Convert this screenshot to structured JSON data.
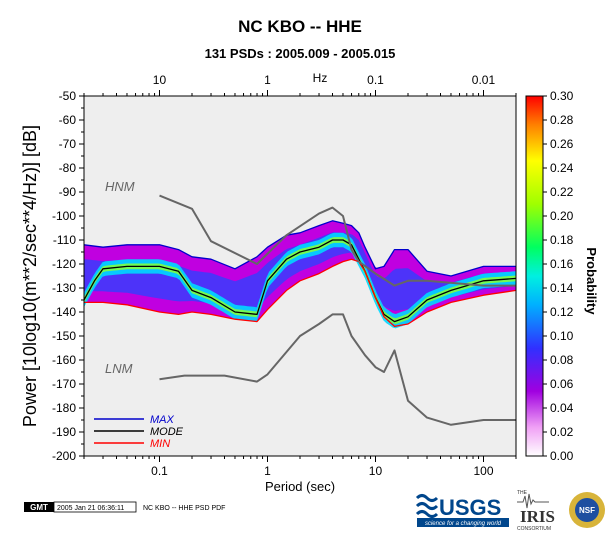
{
  "chart_data": {
    "type": "heatmap",
    "title": "NC KBO -- HHE",
    "subtitle": "131 PSDs : 2005.009 - 2005.015",
    "xlabel": "Period (sec)",
    "ylabel": "Power [10log10(m**2/sec**4/Hz)] [dB]",
    "x_scale": "log",
    "xlim": [
      0.02,
      200
    ],
    "ylim": [
      -200,
      -50
    ],
    "x_ticks": [
      "0.1",
      "1",
      "10",
      "100"
    ],
    "y_ticks": [
      "-50",
      "-60",
      "-70",
      "-80",
      "-90",
      "-100",
      "-110",
      "-120",
      "-130",
      "-140",
      "-150",
      "-160",
      "-170",
      "-180",
      "-190",
      "-200"
    ],
    "top_axis": {
      "label": "Hz",
      "ticks": [
        "10",
        "1",
        "0.1",
        "0.01"
      ]
    },
    "colorbar": {
      "label": "Probability",
      "range": [
        0,
        0.3
      ],
      "ticks": [
        "0.00",
        "0.02",
        "0.04",
        "0.06",
        "0.08",
        "0.10",
        "0.12",
        "0.14",
        "0.16",
        "0.18",
        "0.20",
        "0.22",
        "0.24",
        "0.26",
        "0.28",
        "0.30"
      ]
    },
    "legend": {
      "placement": "bottom-left",
      "entries": [
        "MAX",
        "MODE",
        "MIN"
      ]
    },
    "annotations": [
      "HNM",
      "LNM"
    ],
    "grid": false,
    "colors": {
      "MAX": "#0000cc",
      "MODE": "#000000",
      "MIN": "#ff0000",
      "models": "#666666",
      "background": "#eeeeee"
    },
    "series": [
      {
        "name": "MAX",
        "x": [
          0.02,
          0.03,
          0.05,
          0.1,
          0.15,
          0.2,
          0.3,
          0.5,
          0.8,
          1,
          1.5,
          2,
          3,
          4,
          5,
          6,
          7,
          8,
          10,
          12,
          15,
          20,
          30,
          50,
          100,
          200
        ],
        "y": [
          -112,
          -113,
          -112,
          -112,
          -114,
          -117,
          -118,
          -122,
          -117,
          -113,
          -108,
          -107,
          -104,
          -102,
          -103,
          -104,
          -107,
          -113,
          -122,
          -121,
          -114,
          -114,
          -123,
          -125,
          -121,
          -121
        ]
      },
      {
        "name": "MODE",
        "x": [
          0.02,
          0.025,
          0.03,
          0.05,
          0.1,
          0.15,
          0.2,
          0.3,
          0.5,
          0.8,
          1,
          1.5,
          2,
          3,
          4,
          5,
          6,
          7,
          8,
          10,
          12,
          15,
          20,
          30,
          50,
          100,
          200
        ],
        "y": [
          -135,
          -127,
          -122,
          -121,
          -121,
          -123,
          -131,
          -134,
          -140,
          -141,
          -127,
          -118,
          -115,
          -113,
          -110,
          -110,
          -112,
          -118,
          -123,
          -134,
          -141,
          -144,
          -142,
          -135,
          -131,
          -127,
          -126
        ]
      },
      {
        "name": "MIN",
        "x": [
          0.02,
          0.03,
          0.05,
          0.1,
          0.15,
          0.2,
          0.3,
          0.5,
          0.8,
          1,
          1.5,
          2,
          3,
          4,
          5,
          6,
          7,
          8,
          10,
          12,
          15,
          20,
          30,
          50,
          100,
          200
        ],
        "y": [
          -136,
          -136,
          -137,
          -140,
          -141,
          -140,
          -141,
          -143,
          -144,
          -139,
          -131,
          -127,
          -124,
          -121,
          -119,
          -118,
          -119,
          -123,
          -134,
          -142,
          -146,
          -145,
          -140,
          -136,
          -133,
          -131
        ]
      },
      {
        "name": "HNM",
        "x": [
          0.1,
          0.2,
          0.3,
          0.8,
          1.5,
          3,
          4,
          5,
          6,
          7,
          10,
          15,
          20,
          30,
          100,
          200
        ],
        "y": [
          -91.5,
          -97,
          -110.5,
          -120,
          -108,
          -99,
          -96.5,
          -100,
          -114,
          -119,
          -124,
          -129,
          -127,
          -127,
          -129,
          -129
        ]
      },
      {
        "name": "LNM",
        "x": [
          0.1,
          0.17,
          0.4,
          0.8,
          1,
          2,
          3,
          4,
          5,
          6,
          8,
          10,
          12,
          15,
          20,
          30,
          50,
          100,
          200
        ],
        "y": [
          -168,
          -166.5,
          -166.5,
          -169,
          -166,
          -150,
          -145,
          -141,
          -141,
          -150,
          -158,
          -163,
          -165,
          -156,
          -177,
          -184,
          -187,
          -185,
          -185
        ]
      }
    ]
  },
  "footer": {
    "gmt_label": "GMT",
    "timestamp": "2005 Jan 21 06:36:11",
    "caption": "NC KBO -- HHE PSD PDF"
  },
  "logos": {
    "usgs": "USGS",
    "usgs_tagline": "science for a changing world",
    "iris": "IRIS",
    "iris_the": "THE",
    "iris_consortium": "CONSORTIUM",
    "nsf": "NSF"
  }
}
